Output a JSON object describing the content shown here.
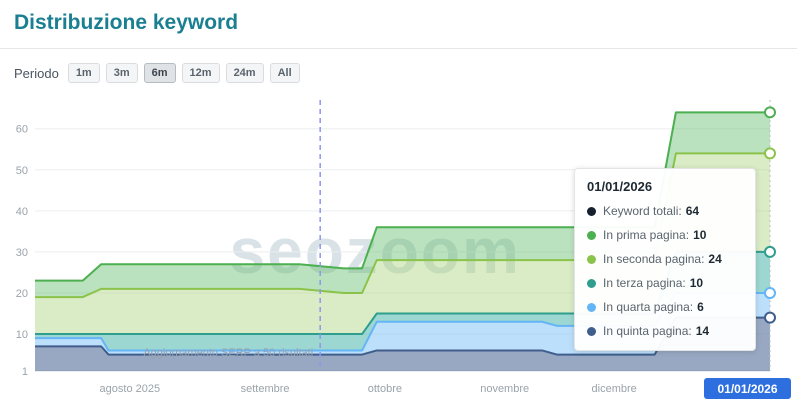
{
  "header": {
    "title": "Distribuzione keyword"
  },
  "period": {
    "label": "Periodo",
    "options": [
      "1m",
      "3m",
      "6m",
      "12m",
      "24m",
      "All"
    ],
    "active": "6m"
  },
  "watermark": "seozoom",
  "axis_current_date": "01/01/2026",
  "tooltip": {
    "title": "01/01/2026",
    "rows": [
      {
        "label": "Keyword totali:",
        "value": "64",
        "color": "#15212e"
      },
      {
        "label": "In prima pagina:",
        "value": "10",
        "color": "#4caf50"
      },
      {
        "label": "In seconda pagina:",
        "value": "24",
        "color": "#8bc34a"
      },
      {
        "label": "In terza pagina:",
        "value": "10",
        "color": "#2f9e8f"
      },
      {
        "label": "In quarta pagina:",
        "value": "6",
        "color": "#64b5f6"
      },
      {
        "label": "In quinta pagina:",
        "value": "14",
        "color": "#3f5e8c"
      }
    ]
  },
  "chart_data": {
    "type": "area",
    "stacked": true,
    "title": "Distribuzione keyword",
    "xlabel": "",
    "ylabel": "",
    "ylim": [
      1,
      67
    ],
    "yticks": [
      1,
      10,
      20,
      30,
      40,
      50,
      60
    ],
    "grid": true,
    "legend_position": "tooltip",
    "x_labels": [
      {
        "label": "agosto 2025",
        "pos": 0.129
      },
      {
        "label": "settembre",
        "pos": 0.313
      },
      {
        "label": "ottobre",
        "pos": 0.476
      },
      {
        "label": "novembre",
        "pos": 0.639
      },
      {
        "label": "dicembre",
        "pos": 0.788
      }
    ],
    "x": [
      0,
      0.065,
      0.09,
      0.1,
      0.36,
      0.42,
      0.445,
      0.465,
      0.49,
      0.69,
      0.71,
      0.843,
      0.872,
      1.0
    ],
    "series": [
      {
        "id": "quinta",
        "name": "In quinta pagina",
        "color": "#3f5e8c",
        "fill": "rgba(108,131,168,0.70)",
        "values": [
          7,
          7,
          7,
          5,
          5,
          5,
          5,
          6,
          6,
          6,
          5,
          5,
          14,
          14
        ]
      },
      {
        "id": "quarta",
        "name": "In quarta pagina",
        "color": "#64b5f6",
        "fill": "rgba(144,202,249,0.60)",
        "values": [
          2,
          2,
          2,
          1,
          1,
          1,
          1,
          7,
          7,
          7,
          7,
          7,
          6,
          6
        ]
      },
      {
        "id": "terza",
        "name": "In terza pagina",
        "color": "#2f9e8f",
        "fill": "rgba(77,182,172,0.55)",
        "values": [
          1,
          1,
          1,
          4,
          4,
          4,
          4,
          2,
          2,
          2,
          3,
          3,
          10,
          10
        ]
      },
      {
        "id": "seconda",
        "name": "In seconda pagina",
        "color": "#8bc34a",
        "fill": "rgba(174,213,129,0.45)",
        "values": [
          9,
          9,
          11,
          11,
          11,
          10,
          10,
          13,
          13,
          13,
          13,
          13,
          24,
          24
        ]
      },
      {
        "id": "prima",
        "name": "In prima pagina",
        "color": "#4caf50",
        "fill": "rgba(105,190,112,0.45)",
        "values": [
          4,
          4,
          6,
          6,
          6,
          6,
          6,
          8,
          8,
          8,
          8,
          8,
          10,
          10
        ]
      }
    ],
    "end_values": [
      14,
      20,
      30,
      54,
      64
    ],
    "totals": {
      "label": "Keyword totali",
      "value": 64,
      "color": "#15212e"
    },
    "annotation": {
      "label": "Aggiornamento SERP a 50 risultati",
      "x": 0.388
    },
    "cursor_x": 1.0
  }
}
